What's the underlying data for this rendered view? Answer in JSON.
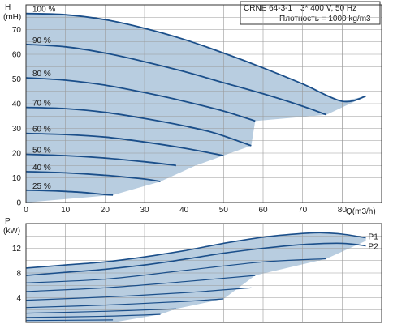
{
  "header": {
    "model": "CRNE 64-3-1",
    "supply": "3* 400 V, 50 Hz",
    "density": "Плотность = 1000 kg/m3"
  },
  "colors": {
    "area_fill": "#b8cde0",
    "curve": "#1b4f8a",
    "grid": "#9a9a9a",
    "frame": "#333333"
  },
  "chart_data": [
    {
      "type": "line",
      "ylabel": "H",
      "yunit": "(mH)",
      "xlabel": "",
      "xunit": "Q(m3/h)",
      "xlim": [
        0,
        90
      ],
      "ylim": [
        0,
        80
      ],
      "xticks": [
        0,
        10,
        20,
        30,
        40,
        50,
        60,
        70,
        80
      ],
      "yticks": [
        0,
        10,
        20,
        30,
        40,
        50,
        60,
        70
      ],
      "grid": true,
      "series": [
        {
          "name": "100 %",
          "x": [
            0,
            10,
            20,
            30,
            40,
            50,
            60,
            70,
            80,
            86
          ],
          "y": [
            76.5,
            76,
            74,
            70.5,
            66,
            60.5,
            54.5,
            48,
            41,
            43
          ]
        },
        {
          "name": "90 %",
          "x": [
            0,
            10,
            20,
            30,
            40,
            50,
            60,
            70,
            76
          ],
          "y": [
            64,
            63,
            60.5,
            57,
            53,
            48.5,
            44,
            39,
            35.5
          ]
        },
        {
          "name": "80 %",
          "x": [
            0,
            10,
            20,
            30,
            40,
            50,
            58
          ],
          "y": [
            50.5,
            49.5,
            47.5,
            44.5,
            41,
            37,
            33
          ]
        },
        {
          "name": "70 %",
          "x": [
            0,
            10,
            20,
            30,
            40,
            48,
            57
          ],
          "y": [
            38.5,
            38,
            36.5,
            34,
            31,
            28,
            23
          ]
        },
        {
          "name": "60 %",
          "x": [
            0,
            10,
            20,
            30,
            40,
            50
          ],
          "y": [
            28,
            27.5,
            26.5,
            24.5,
            22,
            19
          ]
        },
        {
          "name": "50 %",
          "x": [
            0,
            10,
            20,
            30,
            38
          ],
          "y": [
            19.5,
            19,
            18,
            16.5,
            15
          ]
        },
        {
          "name": "40 %",
          "x": [
            0,
            10,
            20,
            30,
            34
          ],
          "y": [
            12.5,
            12,
            11,
            9.5,
            8.5
          ]
        },
        {
          "name": "25 %",
          "x": [
            0,
            5,
            10,
            15,
            20,
            22
          ],
          "y": [
            5,
            4.8,
            4.5,
            4,
            3.2,
            3
          ]
        }
      ],
      "series_labels": [
        "100 %",
        "90 %",
        "80 %",
        "70 %",
        "60 %",
        "50 %",
        "40 %",
        "25 %"
      ],
      "envelope_right": [
        [
          0,
          0
        ],
        [
          22,
          3
        ],
        [
          34,
          8.5
        ],
        [
          43,
          15
        ],
        [
          50,
          19
        ],
        [
          57,
          23
        ],
        [
          58,
          33
        ],
        [
          76,
          35.5
        ],
        [
          86,
          43
        ]
      ]
    },
    {
      "type": "line",
      "ylabel": "P",
      "yunit": "(kW)",
      "xlim": [
        0,
        90
      ],
      "ylim": [
        0,
        16
      ],
      "yticks": [
        4,
        8,
        12
      ],
      "grid": true,
      "series": [
        {
          "name": "P1",
          "x": [
            0,
            10,
            20,
            30,
            40,
            50,
            60,
            70,
            75,
            80,
            86
          ],
          "y": [
            8.8,
            9.3,
            9.8,
            10.6,
            11.6,
            12.8,
            13.8,
            14.4,
            14.5,
            14.3,
            13.7
          ]
        },
        {
          "name": "P2",
          "x": [
            0,
            10,
            20,
            30,
            40,
            50,
            60,
            70,
            80,
            86
          ],
          "y": [
            7.6,
            8.1,
            8.6,
            9.3,
            10.2,
            11.2,
            12,
            12.6,
            12.8,
            12.4
          ]
        },
        {
          "name": "",
          "x": [
            0,
            20,
            40,
            60,
            76
          ],
          "y": [
            6.4,
            7.0,
            8.4,
            9.8,
            10.3
          ]
        },
        {
          "name": "",
          "x": [
            0,
            20,
            40,
            58
          ],
          "y": [
            5.0,
            5.6,
            6.6,
            7.6
          ]
        },
        {
          "name": "",
          "x": [
            0,
            20,
            40,
            57
          ],
          "y": [
            3.6,
            4.1,
            4.8,
            5.6
          ]
        },
        {
          "name": "",
          "x": [
            0,
            20,
            40,
            50
          ],
          "y": [
            2.4,
            2.8,
            3.4,
            3.8
          ]
        },
        {
          "name": "",
          "x": [
            0,
            20,
            38
          ],
          "y": [
            1.5,
            1.8,
            2.2
          ]
        },
        {
          "name": "",
          "x": [
            0,
            20,
            34
          ],
          "y": [
            0.8,
            1.0,
            1.3
          ]
        },
        {
          "name": "",
          "x": [
            0,
            22
          ],
          "y": [
            0.3,
            0.4
          ]
        }
      ],
      "series_labels": [
        "P1",
        "P2"
      ],
      "envelope_top": [
        [
          0,
          8.8
        ],
        [
          10,
          9.3
        ],
        [
          20,
          9.8
        ],
        [
          30,
          10.6
        ],
        [
          40,
          11.6
        ],
        [
          50,
          12.8
        ],
        [
          60,
          13.8
        ],
        [
          70,
          14.4
        ],
        [
          75,
          14.5
        ],
        [
          80,
          14.3
        ],
        [
          86,
          13.7
        ]
      ]
    }
  ]
}
